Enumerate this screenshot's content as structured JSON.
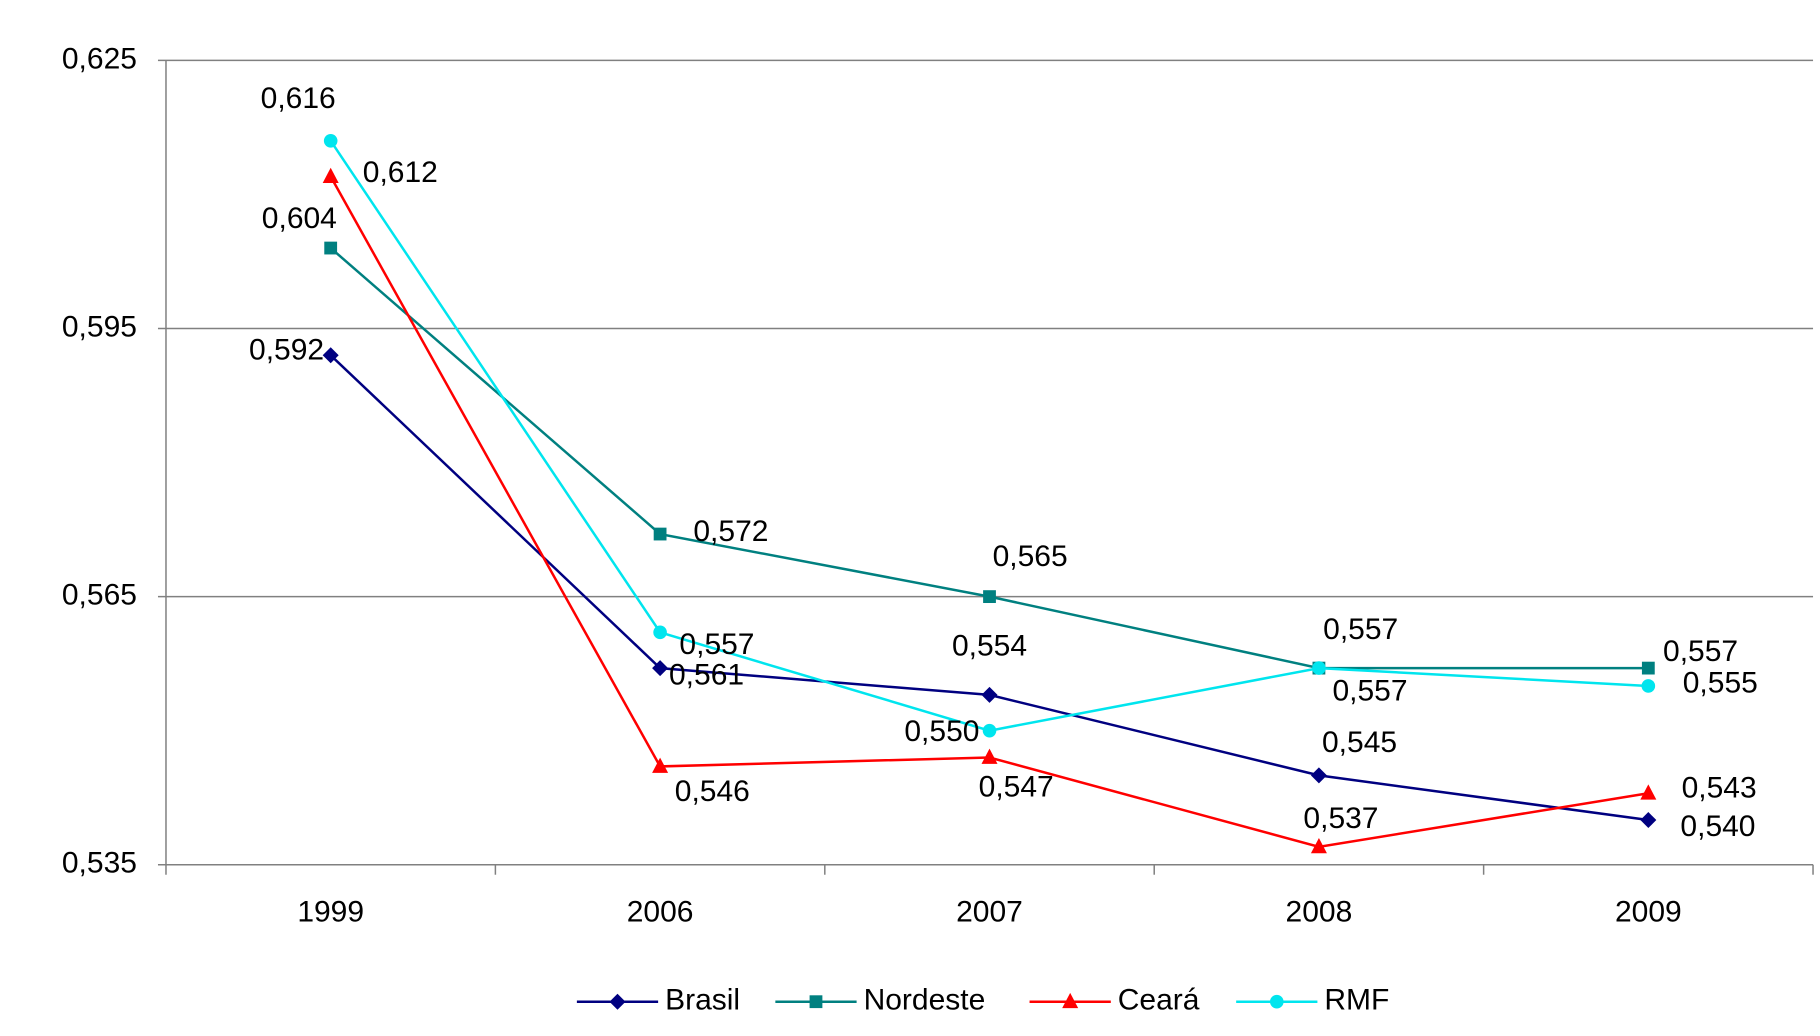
{
  "chart_data": {
    "type": "line",
    "categories": [
      "1999",
      "2006",
      "2007",
      "2008",
      "2009"
    ],
    "series": [
      {
        "name": "Brasil",
        "color": "#000080",
        "marker": "diamond",
        "values": [
          0.592,
          0.557,
          0.554,
          0.545,
          0.54
        ],
        "value_labels": [
          "0,592",
          "0,557",
          "0,554",
          "0,545",
          "0,540"
        ]
      },
      {
        "name": "Nordeste",
        "color": "#008080",
        "marker": "square",
        "values": [
          0.604,
          0.572,
          0.565,
          0.557,
          0.557
        ],
        "value_labels": [
          "0,604",
          "0,572",
          "0,565",
          "0,557",
          "0,557"
        ]
      },
      {
        "name": "Ceará",
        "color": "#ff0000",
        "marker": "triangle",
        "values": [
          0.612,
          0.546,
          0.547,
          0.537,
          0.543
        ],
        "value_labels": [
          "0,612",
          "0,546",
          "0,547",
          "0,537",
          "0,543"
        ]
      },
      {
        "name": "RMF",
        "color": "#00e5ee",
        "marker": "circle",
        "values": [
          0.616,
          0.561,
          0.55,
          0.557,
          0.555
        ],
        "value_labels": [
          "0,616",
          "0,561",
          "0,550",
          "0,557",
          "0,555"
        ]
      }
    ],
    "ylim": [
      0.535,
      0.625
    ],
    "yticks": [
      {
        "value": 0.535,
        "label": "0,535"
      },
      {
        "value": 0.565,
        "label": "0,565"
      },
      {
        "value": 0.595,
        "label": "0,595"
      },
      {
        "value": 0.625,
        "label": "0,625"
      }
    ],
    "grid": true,
    "legend": "bottom"
  }
}
